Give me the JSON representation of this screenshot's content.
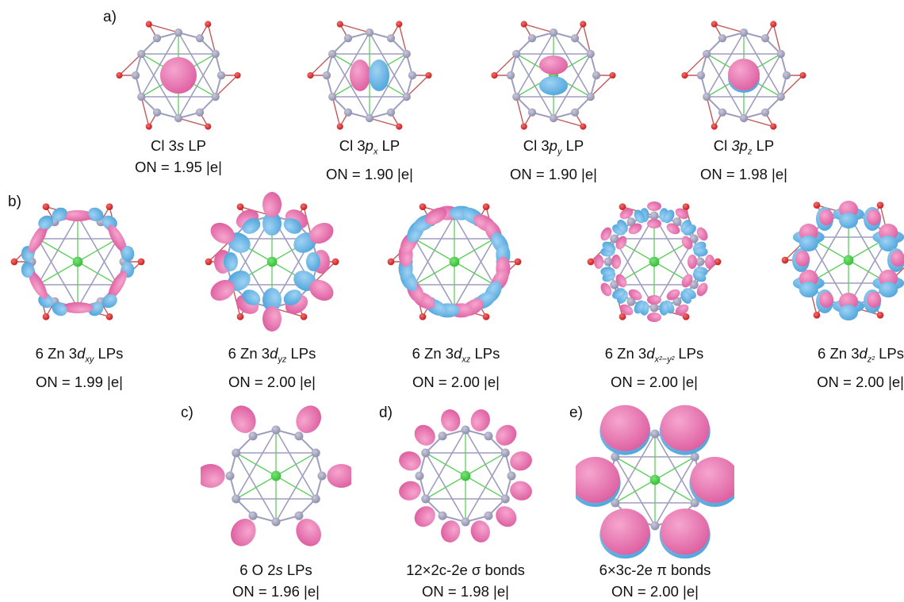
{
  "panel_labels": {
    "a": "a)",
    "b": "b)",
    "c": "c)",
    "d": "d)",
    "e": "e)"
  },
  "colors": {
    "lobe_pink": "#dd5ea0",
    "lobe_blue": "#4fa5dc",
    "zn_atom": "#8a8aa8",
    "o_atom": "#c81616",
    "cl_atom": "#2fbf2f",
    "ring_bond": "#9e9ec0",
    "ring_edge": "#c25a5a",
    "center_line": "#5ccf5c"
  },
  "panel_a": [
    {
      "pre": "Cl 3",
      "it": "s",
      "sub": "",
      "post": " LP",
      "on": "ON = 1.95 |e|"
    },
    {
      "pre": "Cl 3",
      "it": "p",
      "sub": "x",
      "post": " LP",
      "on": "ON = 1.90 |e|"
    },
    {
      "pre": "Cl 3",
      "it": "p",
      "sub": "y",
      "post": " LP",
      "on": "ON = 1.90 |e|"
    },
    {
      "pre": "Cl ",
      "it": "3p",
      "sub": "z",
      "post": " LP",
      "on": "ON = 1.98 |e|"
    }
  ],
  "panel_b": [
    {
      "pre": "6 Zn 3",
      "it": "d",
      "sub": "xy",
      "post": " LPs",
      "on": "ON = 1.99 |e|"
    },
    {
      "pre": "6 Zn 3",
      "it": "d",
      "sub": "yz",
      "post": " LPs",
      "on": "ON = 2.00 |e|"
    },
    {
      "pre": "6 Zn 3",
      "it": "d",
      "sub": "xz",
      "post": " LPs",
      "on": "ON = 2.00 |e|"
    },
    {
      "pre": "6 Zn 3",
      "it": "d",
      "sub": "x²−y²",
      "post": " LPs",
      "on": "ON = 2.00 |e|"
    },
    {
      "pre": "6 Zn 3",
      "it": "d",
      "sub": "z²",
      "post": " LPs",
      "on": "ON = 2.00 |e|"
    }
  ],
  "panel_c": {
    "pre": "6 O 2",
    "it": "s",
    "post": " LPs",
    "on": "ON = 1.96 |e|"
  },
  "panel_d": {
    "text": "12×2c-2e σ bonds",
    "on": "ON = 1.98 |e|"
  },
  "panel_e": {
    "text": "6×3c-2e π bonds",
    "on": "ON = 2.00 |e|"
  }
}
